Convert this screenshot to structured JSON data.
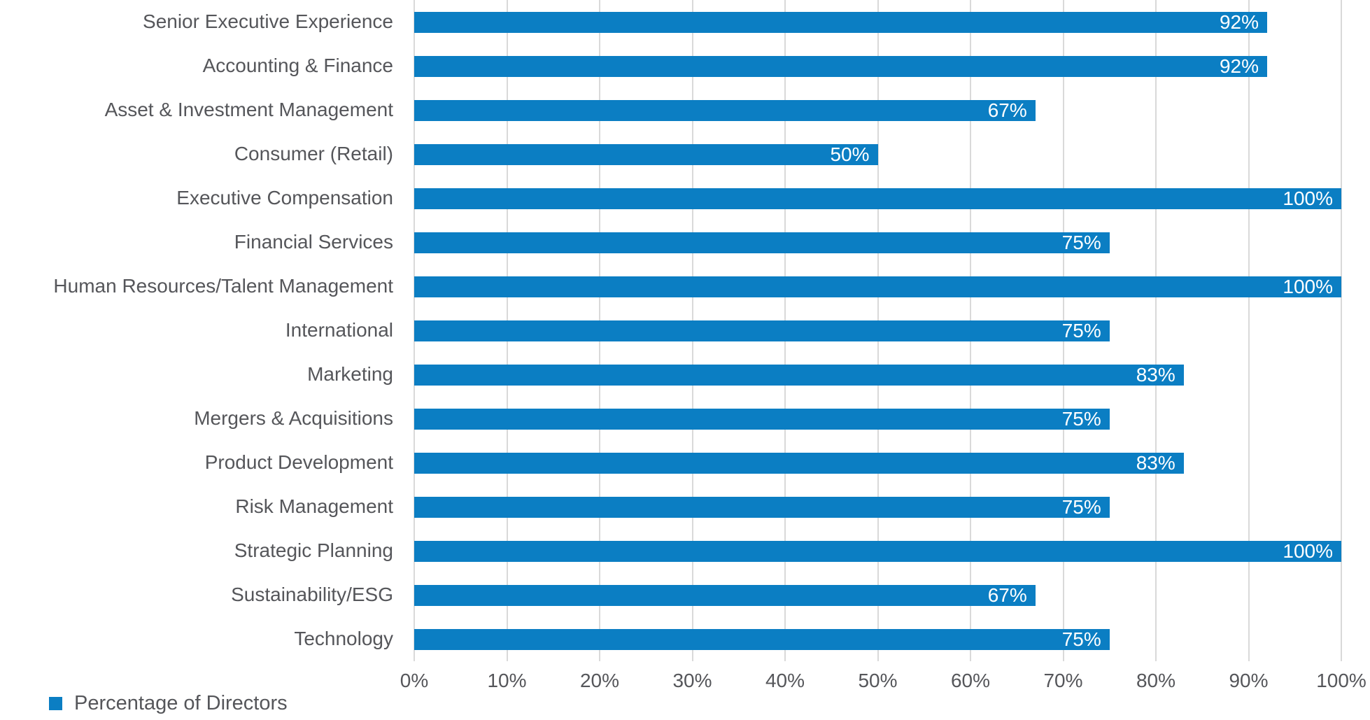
{
  "chart_data": {
    "type": "bar",
    "orientation": "horizontal",
    "title": "",
    "categories": [
      "Senior Executive Experience",
      "Accounting & Finance",
      "Asset & Investment Management",
      "Consumer (Retail)",
      "Executive Compensation",
      "Financial Services",
      "Human Resources/Talent Management",
      "International",
      "Marketing",
      "Mergers & Acquisitions",
      "Product Development",
      "Risk Management",
      "Strategic Planning",
      "Sustainability/ESG",
      "Technology"
    ],
    "values": [
      92,
      92,
      67,
      50,
      100,
      75,
      100,
      75,
      83,
      75,
      83,
      75,
      100,
      67,
      75
    ],
    "value_labels": [
      "92%",
      "92%",
      "67%",
      "50%",
      "100%",
      "75%",
      "100%",
      "75%",
      "83%",
      "75%",
      "83%",
      "75%",
      "100%",
      "67%",
      "75%"
    ],
    "xlabel": "",
    "ylabel": "",
    "x_axis": {
      "min": 0,
      "max": 100,
      "tick_step": 10,
      "ticks": [
        "0%",
        "10%",
        "20%",
        "30%",
        "40%",
        "50%",
        "60%",
        "70%",
        "80%",
        "90%",
        "100%"
      ],
      "grid": true
    },
    "legend": {
      "position": "bottom-left",
      "label": "Percentage of Directors"
    },
    "colors": {
      "bar": "#0b7ec3",
      "gridline": "#d9d9d9",
      "text": "#55565a",
      "value_label": "#ffffff",
      "background": "#ffffff"
    }
  }
}
